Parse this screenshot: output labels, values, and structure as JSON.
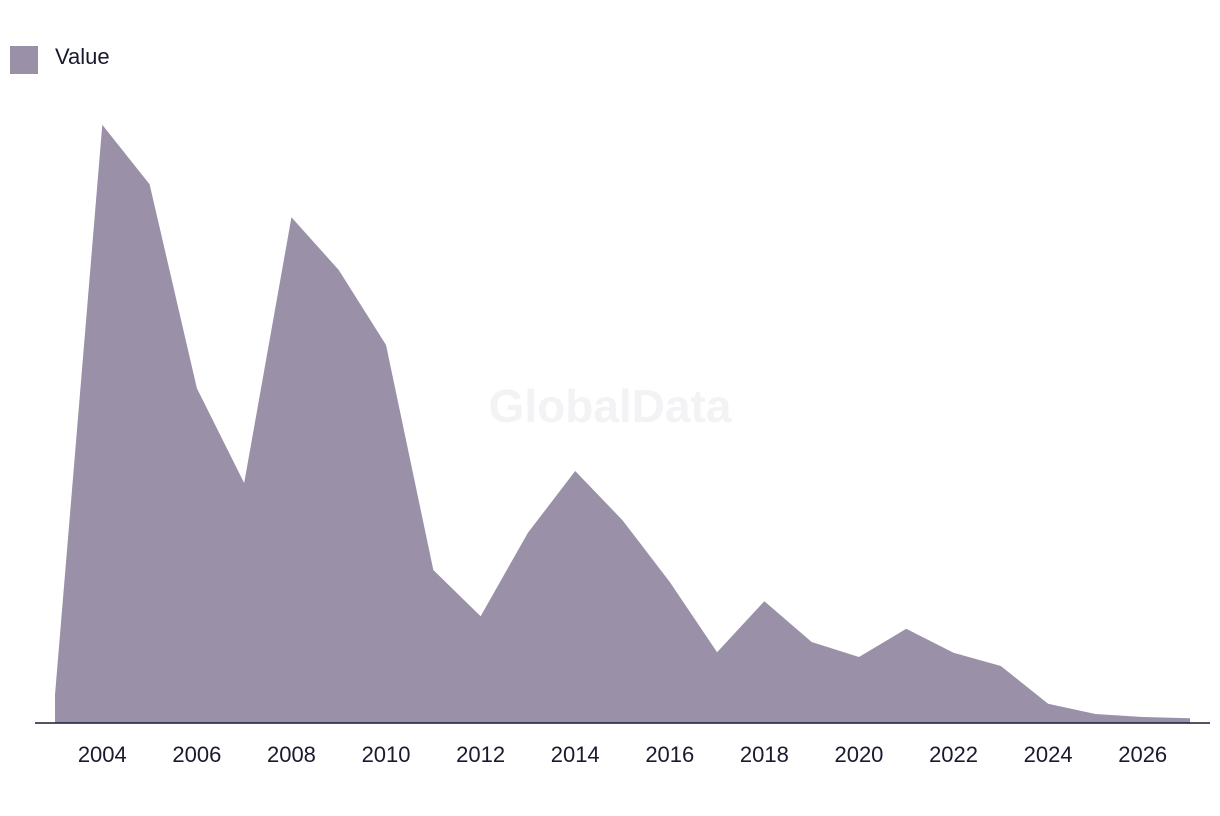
{
  "chart_data": {
    "type": "area",
    "watermark": "GlobalData",
    "x": [
      2003,
      2004,
      2005,
      2006,
      2007,
      2008,
      2009,
      2010,
      2011,
      2012,
      2013,
      2014,
      2015,
      2016,
      2017,
      2018,
      2019,
      2020,
      2021,
      2022,
      2023,
      2024,
      2025,
      2026,
      2027
    ],
    "series": [
      {
        "name": "Value",
        "color": "#9a91a9",
        "values": [
          4.7,
          99.7,
          89.8,
          55.8,
          40,
          84.3,
          75.5,
          63,
          25.5,
          17.8,
          31.7,
          42,
          33.8,
          23.5,
          11.8,
          20.3,
          13.5,
          11,
          15.7,
          11.7,
          9.5,
          3.2,
          1.5,
          1,
          0.8
        ]
      }
    ],
    "xlim": [
      2003,
      2027
    ],
    "xticks": [
      2004,
      2006,
      2008,
      2010,
      2012,
      2014,
      2016,
      2018,
      2020,
      2022,
      2024,
      2026
    ],
    "ylim": [
      0,
      100
    ],
    "legend": "top-left"
  }
}
